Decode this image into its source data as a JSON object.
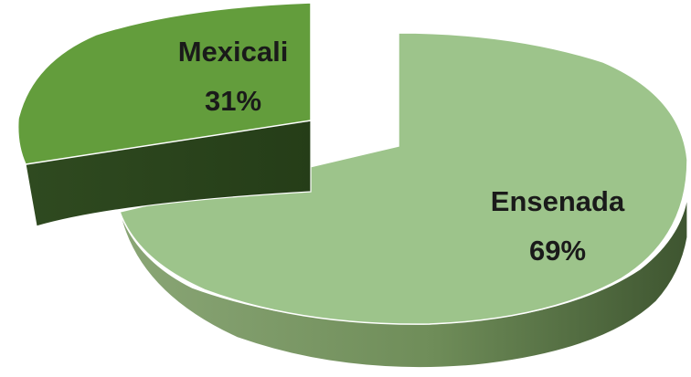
{
  "chart_data": {
    "type": "pie",
    "style": "3d-exploded",
    "categories": [
      "Ensenada",
      "Mexicali"
    ],
    "values": [
      69,
      31
    ],
    "labels": [
      "Ensenada",
      "Mexicali"
    ],
    "value_labels": [
      "69%",
      "31%"
    ],
    "colors": {
      "ensenada_top": "#9dc48b",
      "ensenada_side_light": "#7a9a63",
      "ensenada_side_dark": "#3e5530",
      "mexicali_top": "#639d3c",
      "mexicali_side": "#2e4a1f"
    },
    "legend": "none"
  }
}
